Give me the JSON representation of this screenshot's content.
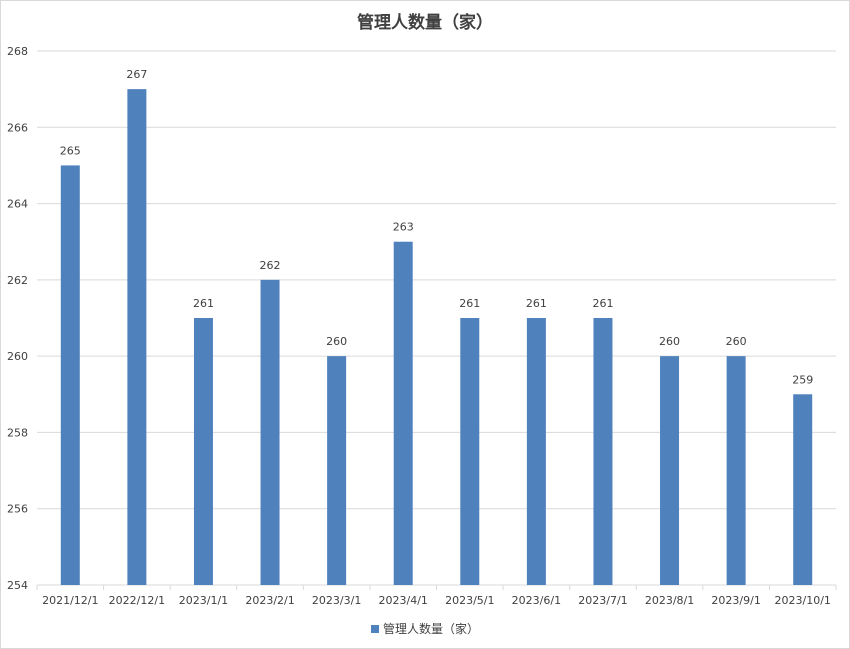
{
  "chart_data": {
    "type": "bar",
    "title": "管理人数量（家）",
    "xlabel": "",
    "ylabel": "",
    "categories": [
      "2021/12/1",
      "2022/12/1",
      "2023/1/1",
      "2023/2/1",
      "2023/3/1",
      "2023/4/1",
      "2023/5/1",
      "2023/6/1",
      "2023/7/1",
      "2023/8/1",
      "2023/9/1",
      "2023/10/1"
    ],
    "series": [
      {
        "name": "管理人数量（家）",
        "values": [
          265,
          267,
          261,
          262,
          260,
          263,
          261,
          261,
          261,
          260,
          260,
          259
        ]
      }
    ],
    "ylim": [
      254,
      268
    ],
    "yticks": [
      254,
      256,
      258,
      260,
      262,
      264,
      266,
      268
    ],
    "grid": true,
    "legend_position": "bottom",
    "data_labels": true
  },
  "colors": {
    "bar": "#4f81bd",
    "grid": "#d9d9d9",
    "text": "#404040"
  }
}
